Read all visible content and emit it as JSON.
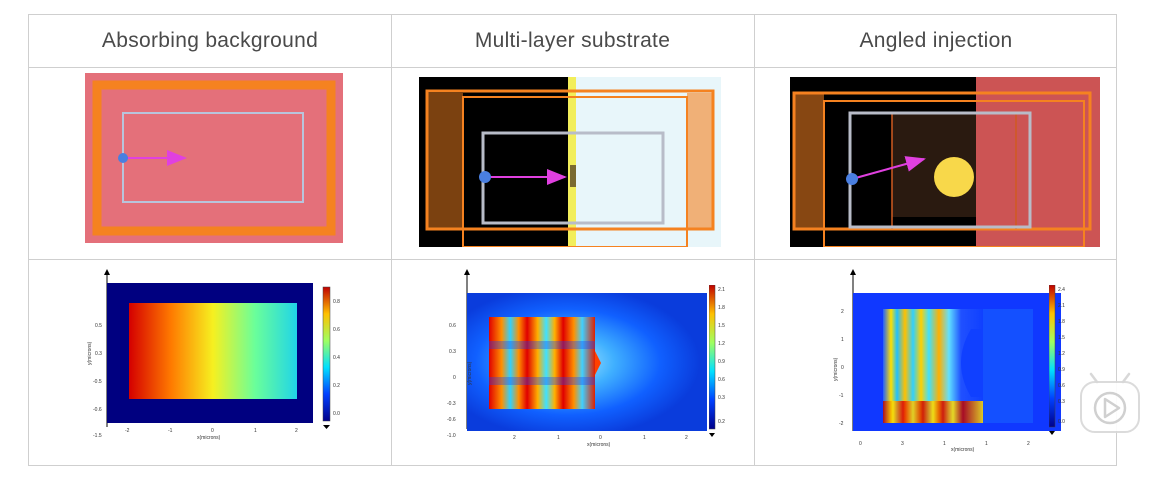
{
  "columns": [
    {
      "title": "Absorbing background",
      "plot": {
        "ylabel": "y(microns)",
        "xlabel": "x(microns)",
        "x_ticks": [
          "-2",
          "-1",
          "0",
          "1",
          "2"
        ],
        "y_ticks": [
          "0.5",
          "0.3",
          "-0.5",
          "-0.6",
          "-1.5"
        ],
        "colorbar_ticks": [
          "0.8",
          "0.6",
          "0.4",
          "0.2",
          "0.0"
        ]
      }
    },
    {
      "title": "Multi-layer substrate",
      "plot": {
        "ylabel": "y(microns)",
        "xlabel": "x(microns)",
        "x_ticks": [
          "2",
          "1",
          "0",
          "1",
          "2"
        ],
        "y_ticks": [
          "0.6",
          "0.3",
          "0",
          "-0.3",
          "-0.6",
          "-1.0"
        ],
        "colorbar_ticks": [
          "2.1",
          "1.8",
          "1.5",
          "1.2",
          "0.9",
          "0.6",
          "0.3",
          "0.2"
        ]
      }
    },
    {
      "title": "Angled injection",
      "plot": {
        "ylabel": "y(microns)",
        "xlabel": "x(microns)",
        "x_ticks": [
          "0",
          "3",
          "1",
          "1",
          "2",
          "3"
        ],
        "y_ticks": [
          "2",
          "1",
          "0",
          "-1",
          "-2"
        ],
        "colorbar_ticks": [
          "2.4",
          "2.1",
          "1.8",
          "1.5",
          "1.2",
          "0.9",
          "0.6",
          "0.3",
          "0.0"
        ]
      }
    }
  ],
  "colors": {
    "grid_line": "#cfcfcf",
    "header_text": "#4a4a4a",
    "absorbing_bg": "#e4707a",
    "pml_orange": "#f58220",
    "source_arrow": "#e040e0",
    "source_dot": "#4a7fe0",
    "substrate_light": "#e8f6fa",
    "scatterer_yellow": "#f8d84a"
  },
  "icons": {
    "watermark": "play-icon"
  }
}
